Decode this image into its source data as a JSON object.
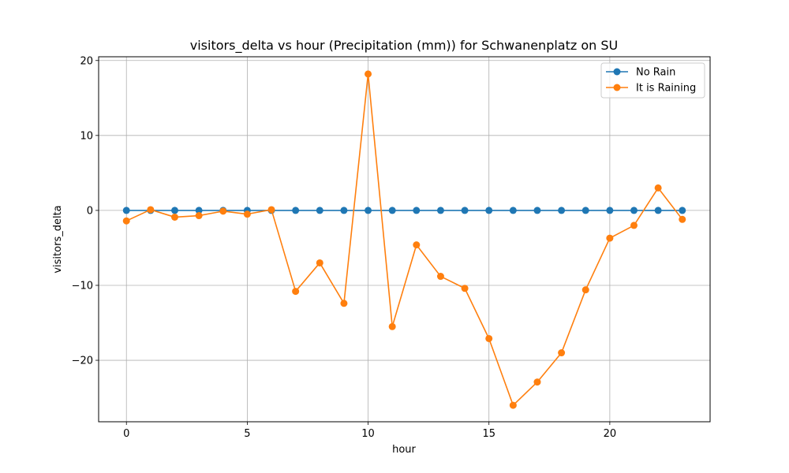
{
  "chart_data": {
    "type": "line",
    "title": "visitors_delta vs hour (Precipitation (mm)) for Schwanenplatz on SU",
    "xlabel": "hour",
    "ylabel": "visitors_delta",
    "xlim": [
      -1.15,
      24.15
    ],
    "ylim": [
      -28.2,
      20.5
    ],
    "xticks": [
      0,
      5,
      10,
      15,
      20
    ],
    "yticks": [
      -20,
      -10,
      0,
      10,
      20
    ],
    "grid": true,
    "legend_position": "top-right",
    "x": [
      0,
      1,
      2,
      3,
      4,
      5,
      6,
      7,
      8,
      9,
      10,
      11,
      12,
      13,
      14,
      15,
      16,
      17,
      18,
      19,
      20,
      21,
      22,
      23
    ],
    "series": [
      {
        "name": "No Rain",
        "color": "#1f77b4",
        "marker": "circle",
        "values": [
          0,
          0,
          0,
          0,
          0,
          0,
          0,
          0,
          0,
          0,
          0,
          0,
          0,
          0,
          0,
          0,
          0,
          0,
          0,
          0,
          0,
          0,
          0,
          0
        ]
      },
      {
        "name": "It is Raining",
        "color": "#ff7f0e",
        "marker": "circle",
        "values": [
          -1.4,
          0.1,
          -0.9,
          -0.7,
          -0.1,
          -0.5,
          0.1,
          -10.8,
          -7.0,
          -12.4,
          18.2,
          -15.5,
          -4.6,
          -8.8,
          -10.4,
          -17.1,
          -26.0,
          -22.9,
          -19.0,
          -10.6,
          -3.7,
          -2.0,
          3.0,
          -1.2
        ]
      }
    ]
  }
}
